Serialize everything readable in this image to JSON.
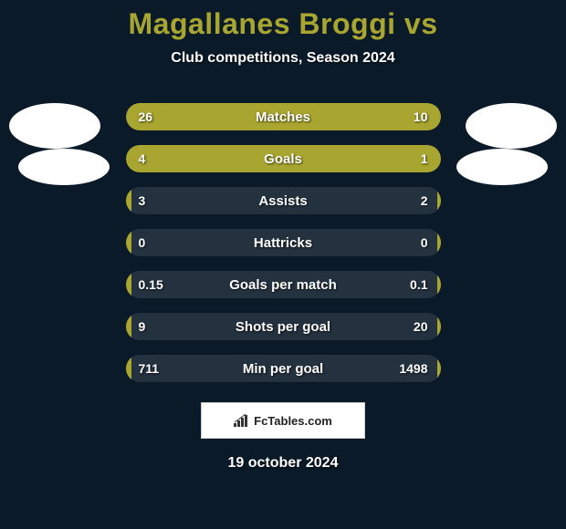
{
  "header": {
    "title": "Magallanes Broggi vs",
    "title_color": "#a8a530",
    "title_fontsize": 32,
    "subtitle": "Club competitions, Season 2024",
    "subtitle_color": "#ffffff"
  },
  "background_color": "#0a1a28",
  "avatars": {
    "left_primary": {
      "shape": "ellipse",
      "fill": "#ffffff"
    },
    "right_primary": {
      "shape": "ellipse",
      "fill": "#ffffff"
    },
    "left_secondary": {
      "shape": "ellipse",
      "fill": "#ffffff"
    },
    "right_secondary": {
      "shape": "ellipse",
      "fill": "#ffffff"
    }
  },
  "stats": {
    "bar_track_color": "#243240",
    "bar_fill_color": "#a8a530",
    "text_color": "#ffffff",
    "rows": [
      {
        "label": "Matches",
        "left": "26",
        "right": "10",
        "left_pct": 70,
        "right_pct": 30
      },
      {
        "label": "Goals",
        "left": "4",
        "right": "1",
        "left_pct": 77,
        "right_pct": 23
      },
      {
        "label": "Assists",
        "left": "3",
        "right": "2",
        "left_pct": 2,
        "right_pct": 1
      },
      {
        "label": "Hattricks",
        "left": "0",
        "right": "0",
        "left_pct": 2,
        "right_pct": 1
      },
      {
        "label": "Goals per match",
        "left": "0.15",
        "right": "0.1",
        "left_pct": 2,
        "right_pct": 1
      },
      {
        "label": "Shots per goal",
        "left": "9",
        "right": "20",
        "left_pct": 2,
        "right_pct": 1
      },
      {
        "label": "Min per goal",
        "left": "711",
        "right": "1498",
        "left_pct": 2,
        "right_pct": 1
      }
    ]
  },
  "branding": {
    "text": "FcTables.com",
    "background": "#ffffff",
    "border_color": "#cccccc"
  },
  "footer": {
    "date": "19 october 2024"
  }
}
